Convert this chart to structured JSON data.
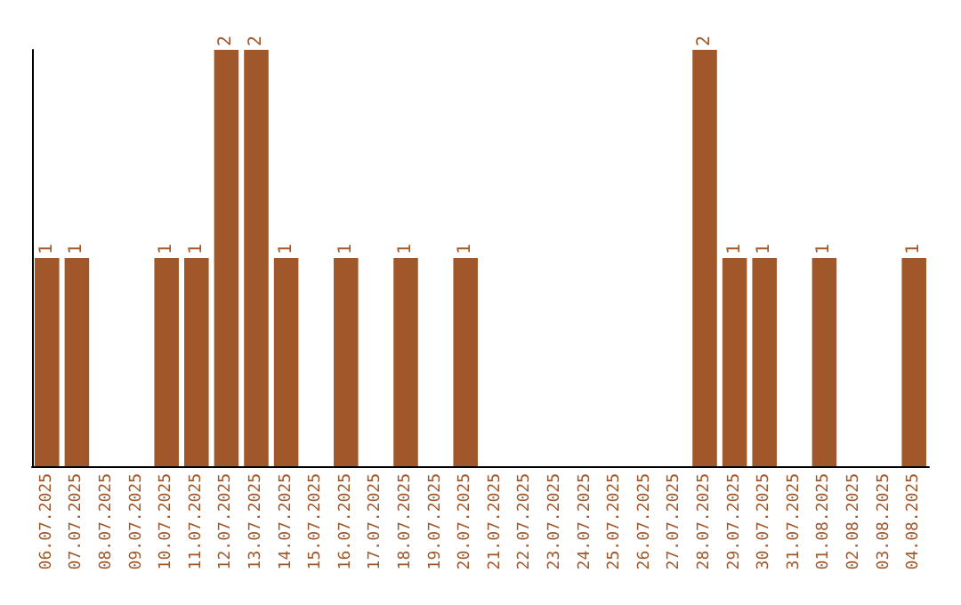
{
  "chart_data": {
    "type": "bar",
    "categories": [
      "06.07.2025",
      "07.07.2025",
      "08.07.2025",
      "09.07.2025",
      "10.07.2025",
      "11.07.2025",
      "12.07.2025",
      "13.07.2025",
      "14.07.2025",
      "15.07.2025",
      "16.07.2025",
      "17.07.2025",
      "18.07.2025",
      "19.07.2025",
      "20.07.2025",
      "21.07.2025",
      "22.07.2025",
      "23.07.2025",
      "24.07.2025",
      "25.07.2025",
      "26.07.2025",
      "27.07.2025",
      "28.07.2025",
      "29.07.2025",
      "30.07.2025",
      "31.07.2025",
      "01.08.2025",
      "02.08.2025",
      "03.08.2025",
      "04.08.2025"
    ],
    "values": [
      1,
      1,
      0,
      0,
      1,
      1,
      2,
      2,
      1,
      0,
      1,
      0,
      1,
      0,
      1,
      0,
      0,
      0,
      0,
      0,
      0,
      0,
      2,
      1,
      1,
      0,
      1,
      0,
      0,
      1
    ],
    "value_labels": [
      "1",
      "1",
      null,
      null,
      "1",
      "1",
      "2",
      "2",
      "1",
      null,
      "1",
      null,
      "1",
      null,
      "1",
      null,
      null,
      null,
      null,
      null,
      null,
      null,
      "2",
      "1",
      "1",
      null,
      "1",
      null,
      null,
      "1"
    ],
    "color": "#a0582a",
    "tick_labels": "x",
    "grid": false
  }
}
